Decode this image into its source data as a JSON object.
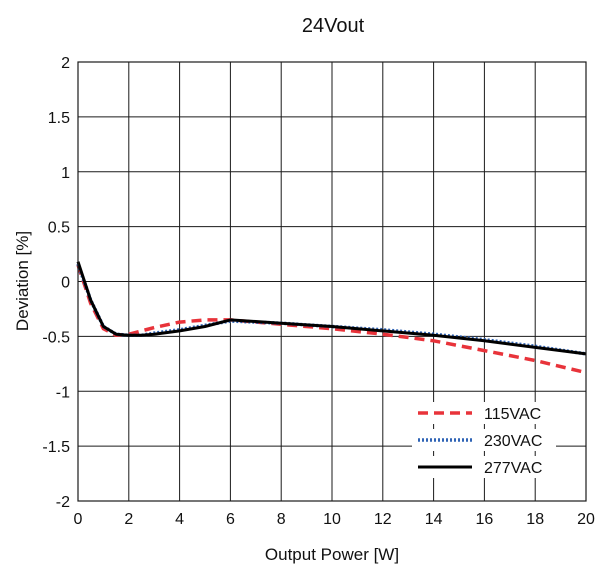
{
  "chart_data": {
    "type": "line",
    "title": "24Vout",
    "xlabel": "Output Power [W]",
    "ylabel": "Deviation [%]",
    "xlim": [
      0,
      20
    ],
    "ylim": [
      -2,
      2
    ],
    "x_ticks": [
      0,
      2,
      4,
      6,
      8,
      10,
      12,
      14,
      16,
      18,
      20
    ],
    "y_ticks": [
      2,
      1.5,
      1,
      0.5,
      0,
      -0.5,
      -1,
      -1.5,
      -2
    ],
    "x_tick_labels": [
      "0",
      "2",
      "4",
      "6",
      "8",
      "10",
      "12",
      "14",
      "16",
      "18",
      "20"
    ],
    "y_tick_labels": [
      "2",
      "1.5",
      "1",
      "0.5",
      "0",
      "-0.5",
      "-1",
      "-1.5",
      "-2"
    ],
    "grid": true,
    "legend_position": "bottom-right",
    "series": [
      {
        "name": "115VAC",
        "color": "#e8333a",
        "style": "dashed",
        "x": [
          0,
          0.5,
          1,
          1.5,
          2,
          3,
          4,
          5,
          6,
          8,
          10,
          12,
          14,
          16,
          18,
          20
        ],
        "y": [
          0.15,
          -0.2,
          -0.43,
          -0.49,
          -0.48,
          -0.42,
          -0.37,
          -0.35,
          -0.35,
          -0.39,
          -0.43,
          -0.48,
          -0.54,
          -0.63,
          -0.72,
          -0.83
        ]
      },
      {
        "name": "230VAC",
        "color": "#2f63b5",
        "style": "dotted",
        "x": [
          0,
          0.5,
          1,
          1.5,
          2,
          2.5,
          3,
          4,
          5,
          6,
          8,
          10,
          12,
          14,
          16,
          18,
          20
        ],
        "y": [
          0.16,
          -0.17,
          -0.41,
          -0.48,
          -0.49,
          -0.49,
          -0.47,
          -0.44,
          -0.4,
          -0.36,
          -0.38,
          -0.41,
          -0.44,
          -0.48,
          -0.53,
          -0.59,
          -0.66
        ]
      },
      {
        "name": "277VAC",
        "color": "#000000",
        "style": "solid",
        "x": [
          0,
          0.5,
          1,
          1.5,
          2,
          2.5,
          3,
          4,
          5,
          6,
          8,
          10,
          12,
          14,
          16,
          18,
          20
        ],
        "y": [
          0.18,
          -0.17,
          -0.41,
          -0.48,
          -0.49,
          -0.49,
          -0.48,
          -0.45,
          -0.41,
          -0.35,
          -0.38,
          -0.41,
          -0.45,
          -0.49,
          -0.54,
          -0.6,
          -0.66
        ]
      }
    ]
  }
}
